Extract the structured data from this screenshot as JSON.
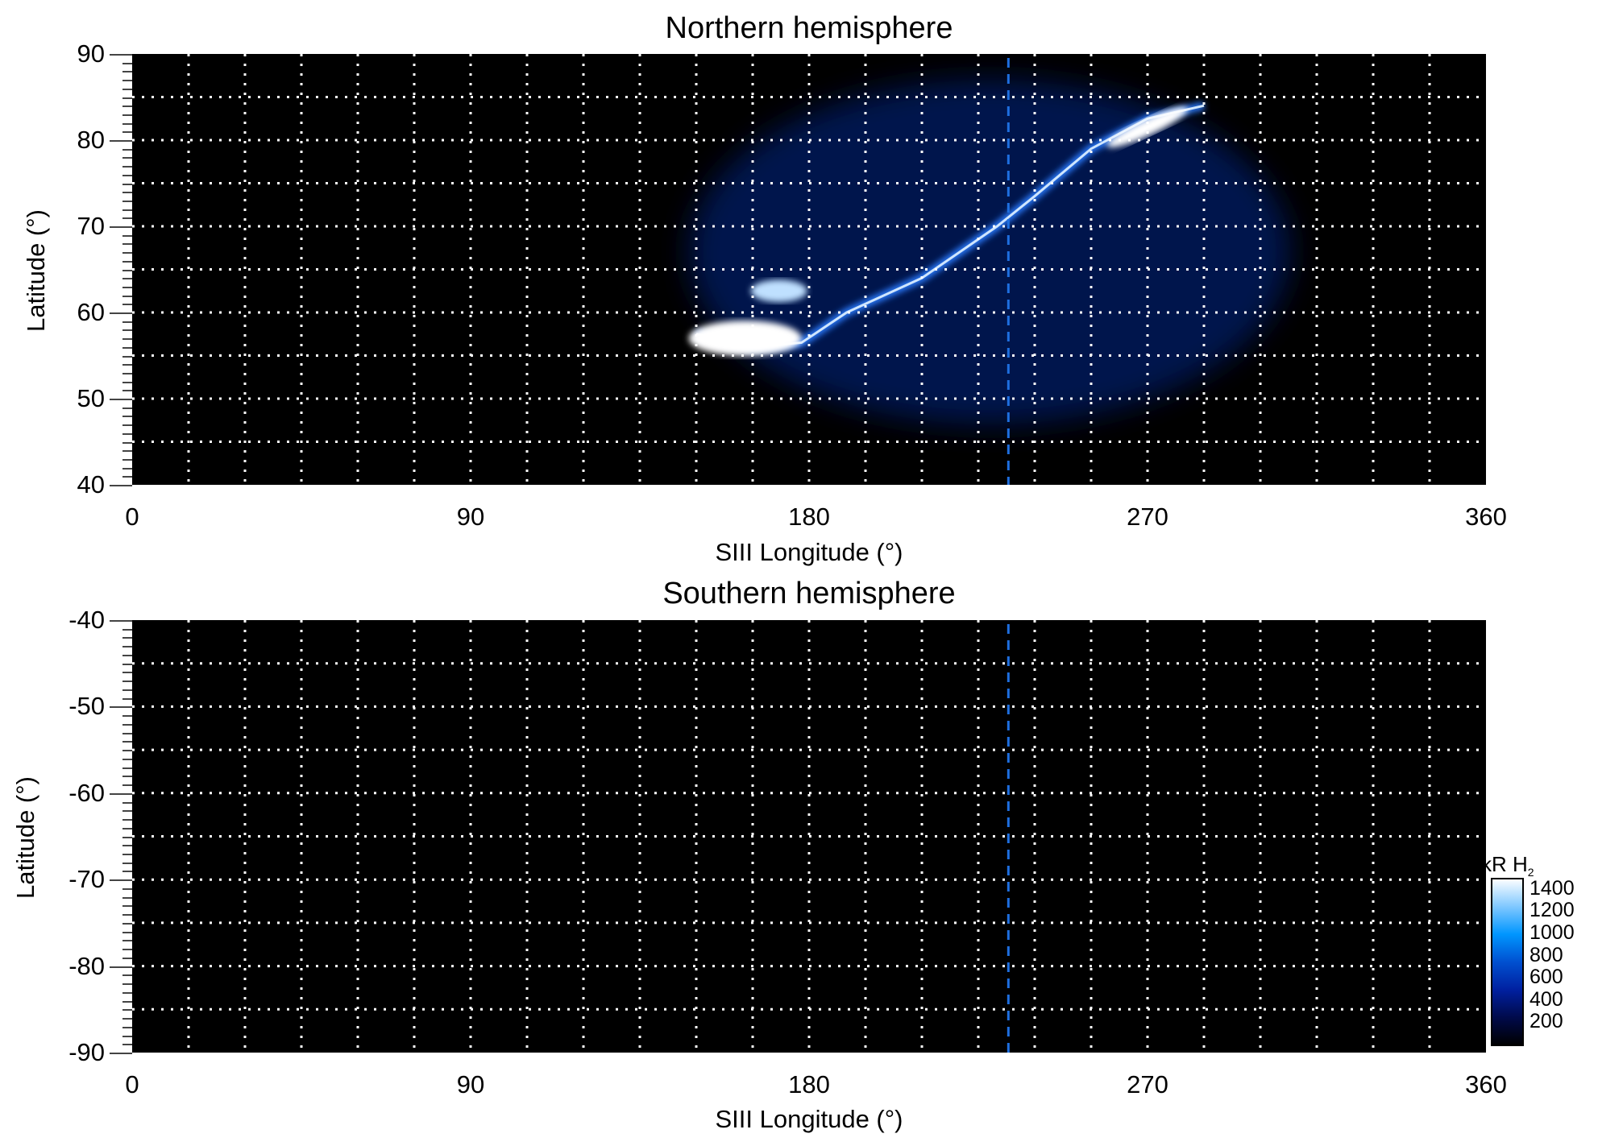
{
  "chart_data": [
    {
      "type": "heatmap",
      "title": "Northern hemisphere",
      "xlabel": "SIII Longitude (°)",
      "ylabel": "Latitude (°)",
      "xlim": [
        0,
        360
      ],
      "ylim": [
        40,
        90
      ],
      "xticks": [
        "0",
        "90",
        "180",
        "270",
        "360"
      ],
      "yticks": [
        "90",
        "80",
        "70",
        "60",
        "50",
        "40"
      ],
      "grid": "dotted, every 15° longitude and 5° latitude",
      "marker_longitude": 233,
      "features": "auroral emission arc from ~150°/57° to ~285°/84°, brightest near 150–180° lon, 55–58° lat and 260–285° lon, 80–84° lat; diffuse emission 150–310° lon"
    },
    {
      "type": "heatmap",
      "title": "Southern hemisphere",
      "xlabel": "SIII Longitude (°)",
      "ylabel": "Latitude (°)",
      "xlim": [
        0,
        360
      ],
      "ylim": [
        -90,
        -40
      ],
      "xticks": [
        "0",
        "90",
        "180",
        "270",
        "360"
      ],
      "yticks": [
        "-40",
        "-50",
        "-60",
        "-70",
        "-80",
        "-90"
      ],
      "grid": "dotted, every 15° longitude and 5° latitude",
      "marker_longitude": 233,
      "features": "no emission"
    }
  ],
  "colorbar": {
    "label": "kR H",
    "label_sub": "2",
    "range": [
      0,
      1500
    ],
    "ticks": [
      "1400",
      "1200",
      "1000",
      "800",
      "600",
      "400",
      "200"
    ],
    "colors": [
      "#000000",
      "#000a4a",
      "#0020a0",
      "#0050d0",
      "#0096ff",
      "#80c8ff",
      "#ffffff"
    ]
  },
  "marker_color": "#1e6fe0"
}
